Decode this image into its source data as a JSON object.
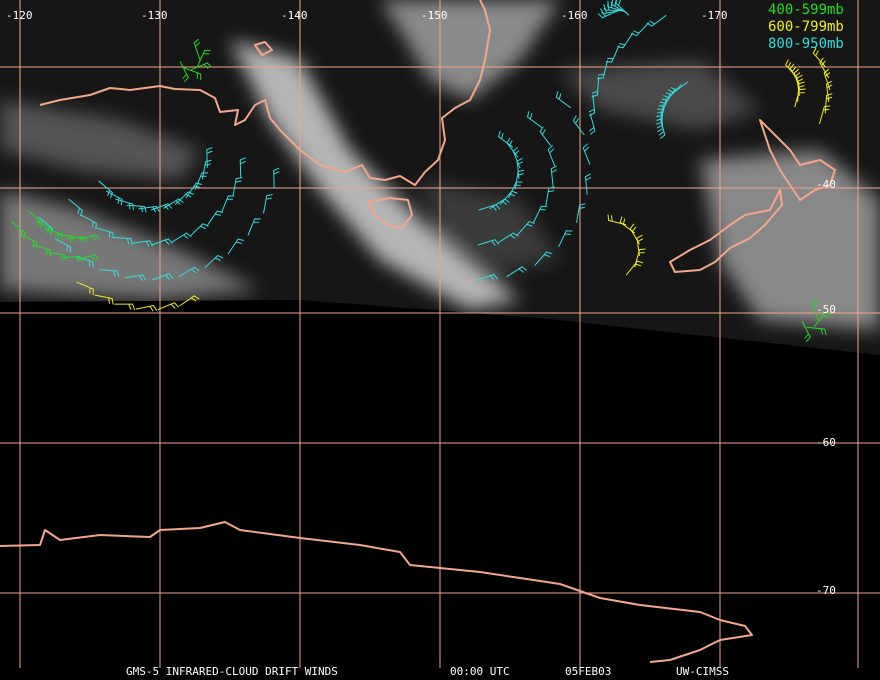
{
  "map": {
    "longitude_labels": [
      "-120",
      "-130",
      "-140",
      "-150",
      "-160",
      "-170"
    ],
    "latitude_labels": [
      "-40",
      "-50",
      "-60",
      "-70"
    ]
  },
  "legend": [
    {
      "label": "400-599mb",
      "color": "#22dd22"
    },
    {
      "label": "600-799mb",
      "color": "#eeee22"
    },
    {
      "label": "800-950mb",
      "color": "#33dddd"
    }
  ],
  "footer": {
    "product": "GMS-5 INFRARED-CLOUD DRIFT WINDS",
    "time": "00:00 UTC",
    "date": "05FEB03",
    "source": "UW-CIMSS"
  }
}
